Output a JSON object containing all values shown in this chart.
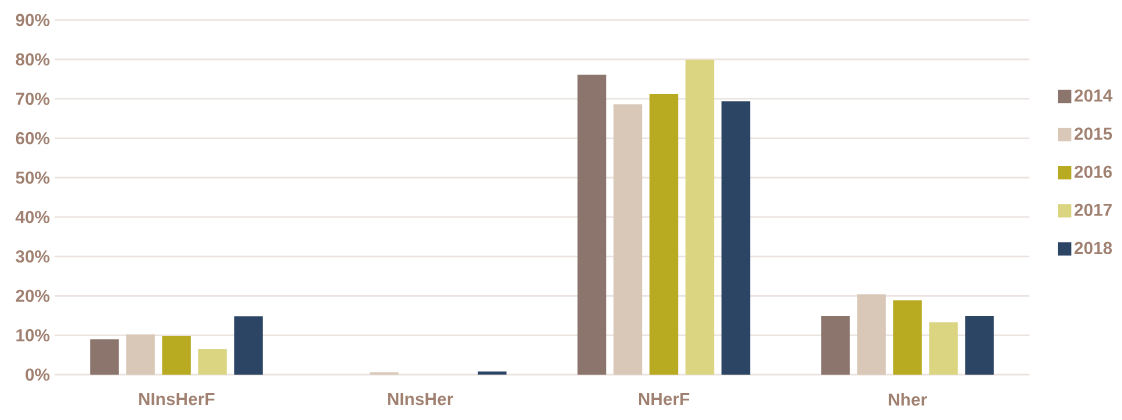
{
  "chart_data": {
    "type": "bar",
    "categories": [
      "NInsHerF",
      "NInsHer",
      "NHerF",
      "Nher"
    ],
    "series": [
      {
        "name": "2014",
        "color": "#8b756c",
        "values": [
          9.0,
          0,
          76.1,
          14.9
        ]
      },
      {
        "name": "2015",
        "color": "#d9c7b7",
        "values": [
          10.2,
          0.6,
          68.6,
          20.4
        ]
      },
      {
        "name": "2016",
        "color": "#b8aa21",
        "values": [
          9.8,
          0,
          71.2,
          18.9
        ]
      },
      {
        "name": "2017",
        "color": "#dbd582",
        "values": [
          6.5,
          0,
          79.9,
          13.3
        ]
      },
      {
        "name": "2018",
        "color": "#2d4565",
        "values": [
          14.8,
          0.8,
          69.4,
          14.9
        ]
      }
    ],
    "ylim": [
      0,
      90
    ],
    "yticks": [
      {
        "value": 0,
        "label": "0%"
      },
      {
        "value": 10,
        "label": "10%"
      },
      {
        "value": 20,
        "label": "20%"
      },
      {
        "value": 30,
        "label": "30%"
      },
      {
        "value": 40,
        "label": "40%"
      },
      {
        "value": 50,
        "label": "50%"
      },
      {
        "value": 60,
        "label": "60%"
      },
      {
        "value": 70,
        "label": "70%"
      },
      {
        "value": 80,
        "label": "80%"
      },
      {
        "value": 90,
        "label": "90%"
      }
    ],
    "grid": "y",
    "legend": "right"
  }
}
